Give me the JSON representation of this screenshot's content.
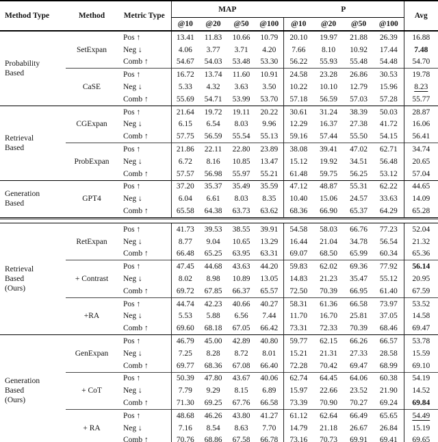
{
  "header": {
    "method_type": "Method Type",
    "method": "Method",
    "metric_type": "Metric Type",
    "avg": "Avg",
    "groups": [
      {
        "label": "MAP",
        "subcols": [
          "@10",
          "@20",
          "@50",
          "@100"
        ]
      },
      {
        "label": "P",
        "subcols": [
          "@10",
          "@20",
          "@50",
          "@100"
        ]
      }
    ]
  },
  "table": {
    "sections": [
      {
        "method_type": "Probability\nBased",
        "methods": [
          {
            "name": "SetExpan",
            "rows": [
              {
                "metric": "Pos ↑",
                "values": [
                  "13.41",
                  "11.83",
                  "10.66",
                  "10.79",
                  "20.10",
                  "19.97",
                  "21.88",
                  "26.39"
                ],
                "avg": "16.88",
                "avg_style": ""
              },
              {
                "metric": "Neg ↓",
                "values": [
                  "4.06",
                  "3.77",
                  "3.71",
                  "4.20",
                  "7.66",
                  "8.10",
                  "10.92",
                  "17.44"
                ],
                "avg": "7.48",
                "avg_style": "bold"
              },
              {
                "metric": "Comb ↑",
                "values": [
                  "54.67",
                  "54.03",
                  "53.48",
                  "53.30",
                  "56.22",
                  "55.93",
                  "55.48",
                  "54.48"
                ],
                "avg": "54.70",
                "avg_style": ""
              }
            ]
          },
          {
            "name": "CaSE",
            "rows": [
              {
                "metric": "Pos ↑",
                "values": [
                  "16.72",
                  "13.74",
                  "11.60",
                  "10.91",
                  "24.58",
                  "23.28",
                  "26.86",
                  "30.53"
                ],
                "avg": "19.78",
                "avg_style": ""
              },
              {
                "metric": "Neg ↓",
                "values": [
                  "5.33",
                  "4.32",
                  "3.63",
                  "3.50",
                  "10.22",
                  "10.10",
                  "12.79",
                  "15.96"
                ],
                "avg": "8.23",
                "avg_style": "underline"
              },
              {
                "metric": "Comb ↑",
                "values": [
                  "55.69",
                  "54.71",
                  "53.99",
                  "53.70",
                  "57.18",
                  "56.59",
                  "57.03",
                  "57.28"
                ],
                "avg": "55.77",
                "avg_style": ""
              }
            ]
          }
        ]
      },
      {
        "method_type": "Retrieval\nBased",
        "methods": [
          {
            "name": "CGExpan",
            "rows": [
              {
                "metric": "Pos ↑",
                "values": [
                  "21.64",
                  "19.72",
                  "19.11",
                  "20.22",
                  "30.61",
                  "31.24",
                  "38.39",
                  "50.03"
                ],
                "avg": "28.87",
                "avg_style": ""
              },
              {
                "metric": "Neg ↓",
                "values": [
                  "6.15",
                  "6.54",
                  "8.03",
                  "9.96",
                  "12.29",
                  "16.37",
                  "27.38",
                  "41.72"
                ],
                "avg": "16.06",
                "avg_style": ""
              },
              {
                "metric": "Comb ↑",
                "values": [
                  "57.75",
                  "56.59",
                  "55.54",
                  "55.13",
                  "59.16",
                  "57.44",
                  "55.50",
                  "54.15"
                ],
                "avg": "56.41",
                "avg_style": ""
              }
            ]
          },
          {
            "name": "ProbExpan",
            "rows": [
              {
                "metric": "Pos ↑",
                "values": [
                  "21.86",
                  "22.11",
                  "22.80",
                  "23.89",
                  "38.08",
                  "39.41",
                  "47.02",
                  "62.71"
                ],
                "avg": "34.74",
                "avg_style": ""
              },
              {
                "metric": "Neg ↓",
                "values": [
                  "6.72",
                  "8.16",
                  "10.85",
                  "13.47",
                  "15.12",
                  "19.92",
                  "34.51",
                  "56.48"
                ],
                "avg": "20.65",
                "avg_style": ""
              },
              {
                "metric": "Comb ↑",
                "values": [
                  "57.57",
                  "56.98",
                  "55.97",
                  "55.21",
                  "61.48",
                  "59.75",
                  "56.25",
                  "53.12"
                ],
                "avg": "57.04",
                "avg_style": ""
              }
            ]
          }
        ]
      },
      {
        "method_type": "Generation\nBased",
        "methods": [
          {
            "name": "GPT4",
            "rows": [
              {
                "metric": "Pos ↑",
                "values": [
                  "37.20",
                  "35.37",
                  "35.49",
                  "35.59",
                  "47.12",
                  "48.87",
                  "55.31",
                  "62.22"
                ],
                "avg": "44.65",
                "avg_style": ""
              },
              {
                "metric": "Neg ↓",
                "values": [
                  "6.04",
                  "6.61",
                  "8.03",
                  "8.35",
                  "10.40",
                  "15.06",
                  "24.57",
                  "33.63"
                ],
                "avg": "14.09",
                "avg_style": ""
              },
              {
                "metric": "Comb ↑",
                "values": [
                  "65.58",
                  "64.38",
                  "63.73",
                  "63.62",
                  "68.36",
                  "66.90",
                  "65.37",
                  "64.29"
                ],
                "avg": "65.28",
                "avg_style": ""
              }
            ]
          }
        ]
      },
      {
        "method_type": "Retrieval\nBased\n(Ours)",
        "separator": "double",
        "methods": [
          {
            "name": "RetExpan",
            "rows": [
              {
                "metric": "Pos ↑",
                "values": [
                  "41.73",
                  "39.53",
                  "38.55",
                  "39.91",
                  "54.58",
                  "58.03",
                  "66.76",
                  "77.23"
                ],
                "avg": "52.04",
                "avg_style": ""
              },
              {
                "metric": "Neg ↓",
                "values": [
                  "8.77",
                  "9.04",
                  "10.65",
                  "13.29",
                  "16.44",
                  "21.04",
                  "34.78",
                  "56.54"
                ],
                "avg": "21.32",
                "avg_style": ""
              },
              {
                "metric": "Comb ↑",
                "values": [
                  "66.48",
                  "65.25",
                  "63.95",
                  "63.31",
                  "69.07",
                  "68.50",
                  "65.99",
                  "60.34"
                ],
                "avg": "65.36",
                "avg_style": ""
              }
            ]
          },
          {
            "name": "+ Contrast",
            "rows": [
              {
                "metric": "Pos ↑",
                "values": [
                  "47.45",
                  "44.68",
                  "43.63",
                  "44.20",
                  "59.83",
                  "62.02",
                  "69.36",
                  "77.92"
                ],
                "avg": "56.14",
                "avg_style": "bold"
              },
              {
                "metric": "Neg ↓",
                "values": [
                  "8.02",
                  "8.98",
                  "10.89",
                  "13.05",
                  "14.83",
                  "21.23",
                  "35.47",
                  "55.12"
                ],
                "avg": "20.95",
                "avg_style": ""
              },
              {
                "metric": "Comb ↑",
                "values": [
                  "69.72",
                  "67.85",
                  "66.37",
                  "65.57",
                  "72.50",
                  "70.39",
                  "66.95",
                  "61.40"
                ],
                "avg": "67.59",
                "avg_style": ""
              }
            ]
          },
          {
            "name": "+RA",
            "rows": [
              {
                "metric": "Pos ↑",
                "values": [
                  "44.74",
                  "42.23",
                  "40.66",
                  "40.27",
                  "58.31",
                  "61.36",
                  "66.58",
                  "73.97"
                ],
                "avg": "53.52",
                "avg_style": ""
              },
              {
                "metric": "Neg ↓",
                "values": [
                  "5.53",
                  "5.88",
                  "6.56",
                  "7.44",
                  "11.70",
                  "16.70",
                  "25.81",
                  "37.05"
                ],
                "avg": "14.58",
                "avg_style": ""
              },
              {
                "metric": "Comb ↑",
                "values": [
                  "69.60",
                  "68.18",
                  "67.05",
                  "66.42",
                  "73.31",
                  "72.33",
                  "70.39",
                  "68.46"
                ],
                "avg": "69.47",
                "avg_style": ""
              }
            ]
          }
        ]
      },
      {
        "method_type": "Generation\nBased\n(Ours)",
        "methods": [
          {
            "name": "GenExpan",
            "rows": [
              {
                "metric": "Pos ↑",
                "values": [
                  "46.79",
                  "45.00",
                  "42.89",
                  "40.80",
                  "59.77",
                  "62.15",
                  "66.26",
                  "66.57"
                ],
                "avg": "53.78",
                "avg_style": ""
              },
              {
                "metric": "Neg ↓",
                "values": [
                  "7.25",
                  "8.28",
                  "8.72",
                  "8.01",
                  "15.21",
                  "21.31",
                  "27.33",
                  "28.58"
                ],
                "avg": "15.59",
                "avg_style": ""
              },
              {
                "metric": "Comb ↑",
                "values": [
                  "69.77",
                  "68.36",
                  "67.08",
                  "66.40",
                  "72.28",
                  "70.42",
                  "69.47",
                  "68.99"
                ],
                "avg": "69.10",
                "avg_style": ""
              }
            ]
          },
          {
            "name": "+ CoT",
            "rows": [
              {
                "metric": "Pos ↑",
                "values": [
                  "50.39",
                  "47.80",
                  "43.67",
                  "40.06",
                  "62.74",
                  "64.45",
                  "64.06",
                  "60.38"
                ],
                "avg": "54.19",
                "avg_style": ""
              },
              {
                "metric": "Neg ↓",
                "values": [
                  "7.79",
                  "9.29",
                  "8.15",
                  "6.89",
                  "15.97",
                  "22.66",
                  "23.52",
                  "21.90"
                ],
                "avg": "14.52",
                "avg_style": ""
              },
              {
                "metric": "Comb ↑",
                "values": [
                  "71.30",
                  "69.25",
                  "67.76",
                  "66.58",
                  "73.39",
                  "70.90",
                  "70.27",
                  "69.24"
                ],
                "avg": "69.84",
                "avg_style": "bold"
              }
            ]
          },
          {
            "name": "+ RA",
            "rows": [
              {
                "metric": "Pos ↑",
                "values": [
                  "48.68",
                  "46.26",
                  "43.80",
                  "41.27",
                  "61.12",
                  "62.64",
                  "66.49",
                  "65.65"
                ],
                "avg": "54.49",
                "avg_style": "underline"
              },
              {
                "metric": "Neg ↓",
                "values": [
                  "7.16",
                  "8.54",
                  "8.63",
                  "7.70",
                  "14.79",
                  "21.18",
                  "26.67",
                  "26.84"
                ],
                "avg": "15.19",
                "avg_style": ""
              },
              {
                "metric": "Comb ↑",
                "values": [
                  "70.76",
                  "68.86",
                  "67.58",
                  "66.78",
                  "73.16",
                  "70.73",
                  "69.91",
                  "69.41"
                ],
                "avg": "69.65",
                "avg_style": "underline"
              }
            ]
          }
        ]
      }
    ]
  }
}
